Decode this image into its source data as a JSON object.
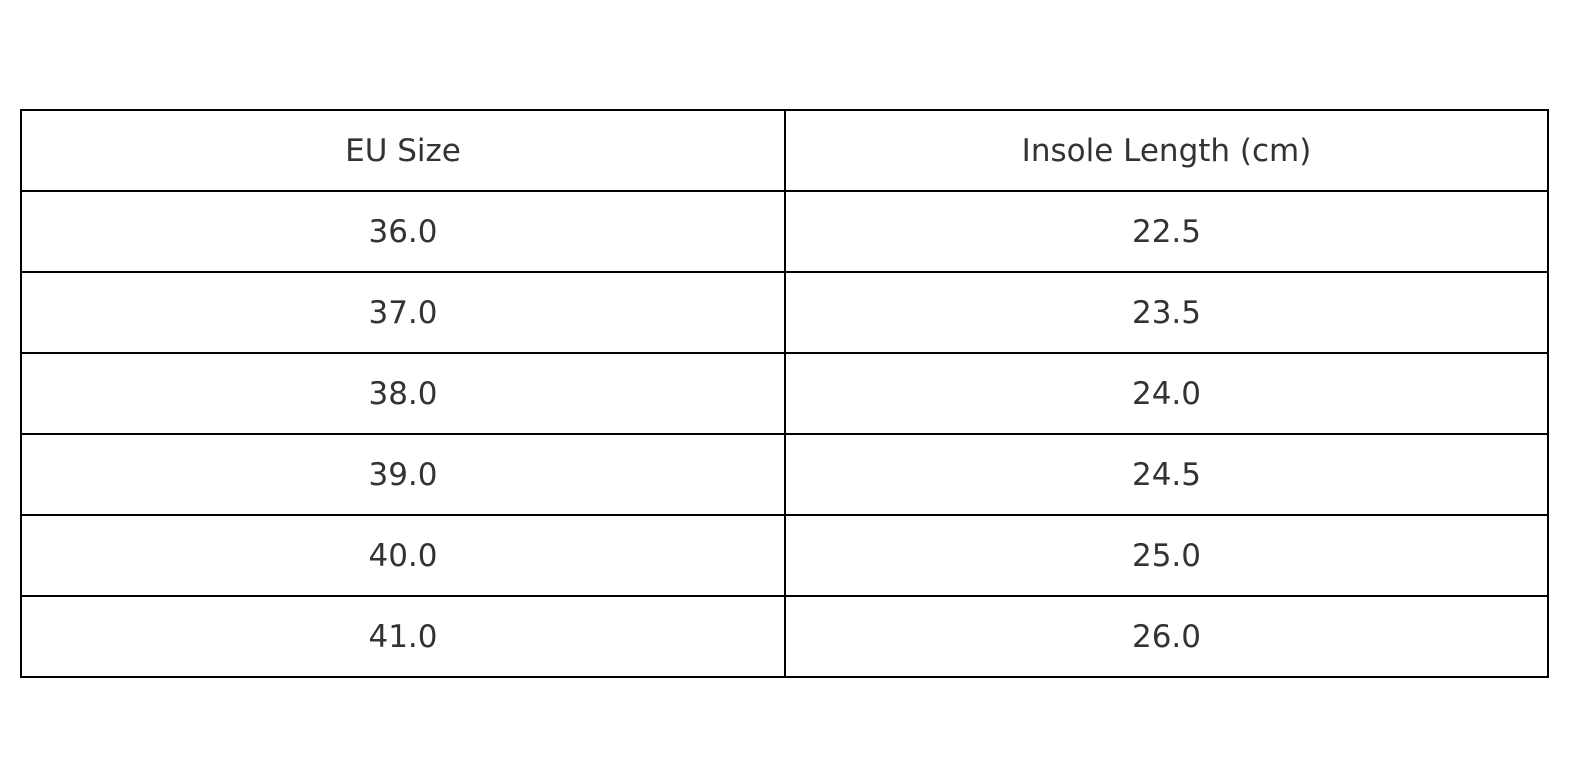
{
  "chart_data": {
    "type": "table",
    "columns": [
      "EU Size",
      "Insole Length (cm)"
    ],
    "rows": [
      [
        "36.0",
        "22.5"
      ],
      [
        "37.0",
        "23.5"
      ],
      [
        "38.0",
        "24.0"
      ],
      [
        "39.0",
        "24.5"
      ],
      [
        "40.0",
        "25.0"
      ],
      [
        "41.0",
        "26.0"
      ]
    ]
  }
}
